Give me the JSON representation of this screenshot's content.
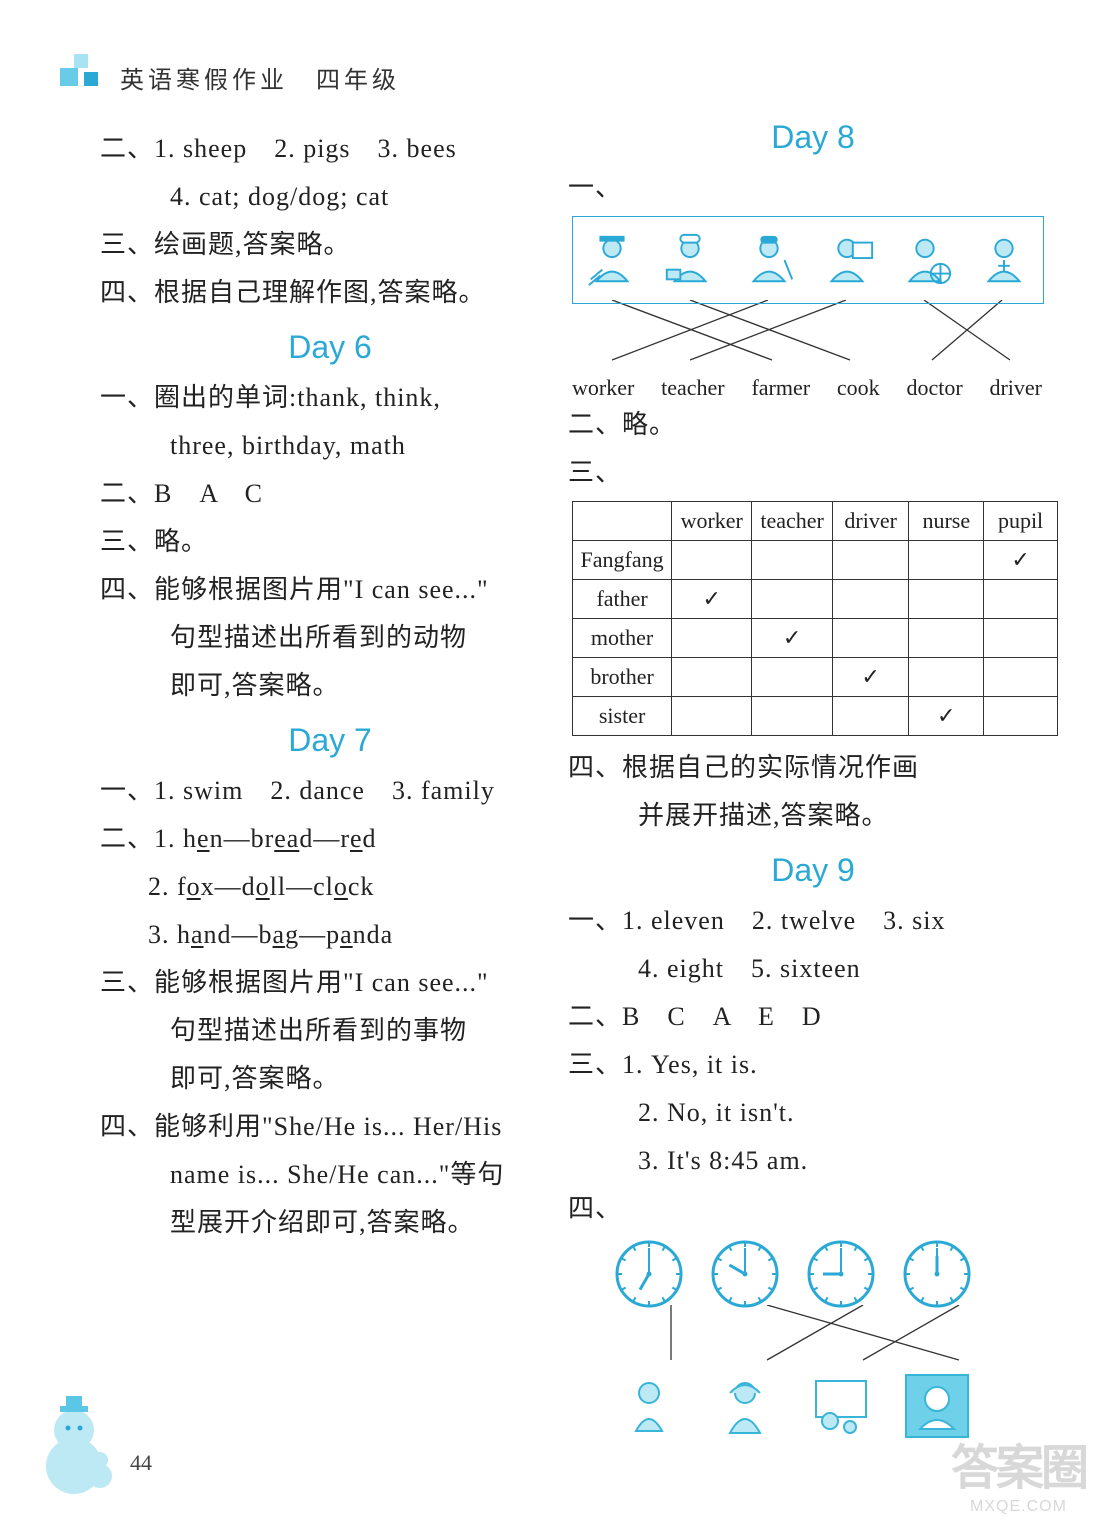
{
  "header": "英语寒假作业　四年级",
  "colors": {
    "accent": "#2aa9d6",
    "text": "#222",
    "iconTeal": "#39b5da",
    "gridBorder": "#333"
  },
  "fontsizes": {
    "body": 26,
    "dayHeading": 32,
    "header": 24,
    "table": 22,
    "matchLabel": 22
  },
  "days": {
    "day6": {
      "title": "Day 6"
    },
    "day7": {
      "title": "Day 7"
    },
    "day8": {
      "title": "Day 8"
    },
    "day9": {
      "title": "Day 9"
    }
  },
  "left": {
    "l01": "二、1. sheep　2. pigs　3. bees",
    "l02": "4. cat; dog/dog; cat",
    "l03": "三、绘画题,答案略。",
    "l04": "四、根据自己理解作图,答案略。",
    "l05": "一、圈出的单词:thank, think,",
    "l06": "three, birthday, math",
    "l07": "二、B　A　C",
    "l08": "三、略。",
    "l09": "四、能够根据图片用\"I can see...\"",
    "l10": "句型描述出所看到的动物",
    "l11": "即可,答案略。",
    "l12": "一、1. swim　2. dance　3. family",
    "l13a": "二、1. h",
    "l13b": "e",
    "l13c": "n—br",
    "l13d": "ea",
    "l13e": "d—r",
    "l13f": "e",
    "l13g": "d",
    "l14a": "2. f",
    "l14b": "o",
    "l14c": "x—d",
    "l14d": "o",
    "l14e": "ll—cl",
    "l14f": "o",
    "l14g": "ck",
    "l15a": "3. h",
    "l15b": "a",
    "l15c": "nd—b",
    "l15d": "a",
    "l15e": "g—p",
    "l15f": "a",
    "l15g": "nda",
    "l16": "三、能够根据图片用\"I can see...\"",
    "l17": "句型描述出所看到的事物",
    "l18": "即可,答案略。",
    "l19": "四、能够利用\"She/He is... Her/His",
    "l20": "name is... She/He can...\"等句",
    "l21": "型展开介绍即可,答案略。"
  },
  "right": {
    "r01": "一、",
    "matchLabels": [
      "worker",
      "teacher",
      "farmer",
      "cook",
      "doctor",
      "driver"
    ],
    "matchIcons": [
      "farmer",
      "cook",
      "worker",
      "teacher",
      "driver",
      "doctor"
    ],
    "r02": "二、略。",
    "r03": "三、",
    "table": {
      "cols": [
        "",
        "worker",
        "teacher",
        "driver",
        "nurse",
        "pupil"
      ],
      "rows": [
        {
          "h": "Fangfang",
          "c": [
            "",
            "",
            "",
            "",
            "✓"
          ]
        },
        {
          "h": "father",
          "c": [
            "✓",
            "",
            "",
            "",
            ""
          ]
        },
        {
          "h": "mother",
          "c": [
            "",
            "✓",
            "",
            "",
            ""
          ]
        },
        {
          "h": "brother",
          "c": [
            "",
            "",
            "✓",
            "",
            ""
          ]
        },
        {
          "h": "sister",
          "c": [
            "",
            "",
            "",
            "✓",
            ""
          ]
        }
      ]
    },
    "r04": "四、根据自己的实际情况作画",
    "r05": "并展开描述,答案略。",
    "r06": "一、1. eleven　2. twelve　3. six",
    "r07": "4. eight　5. sixteen",
    "r08": "二、B　C　A　E　D",
    "r09": "三、1. Yes, it is.",
    "r10": "2. No, it isn't.",
    "r11": "3. It's 8:45 am.",
    "r12": "四、",
    "clocks": [
      {
        "h": 7,
        "m": 0
      },
      {
        "h": 10,
        "m": 0
      },
      {
        "h": 9,
        "m": 0
      },
      {
        "h": 12,
        "m": 0
      }
    ]
  },
  "pageNumber": "44",
  "watermark": {
    "big": "答案圈",
    "small": "MXQE.COM"
  }
}
